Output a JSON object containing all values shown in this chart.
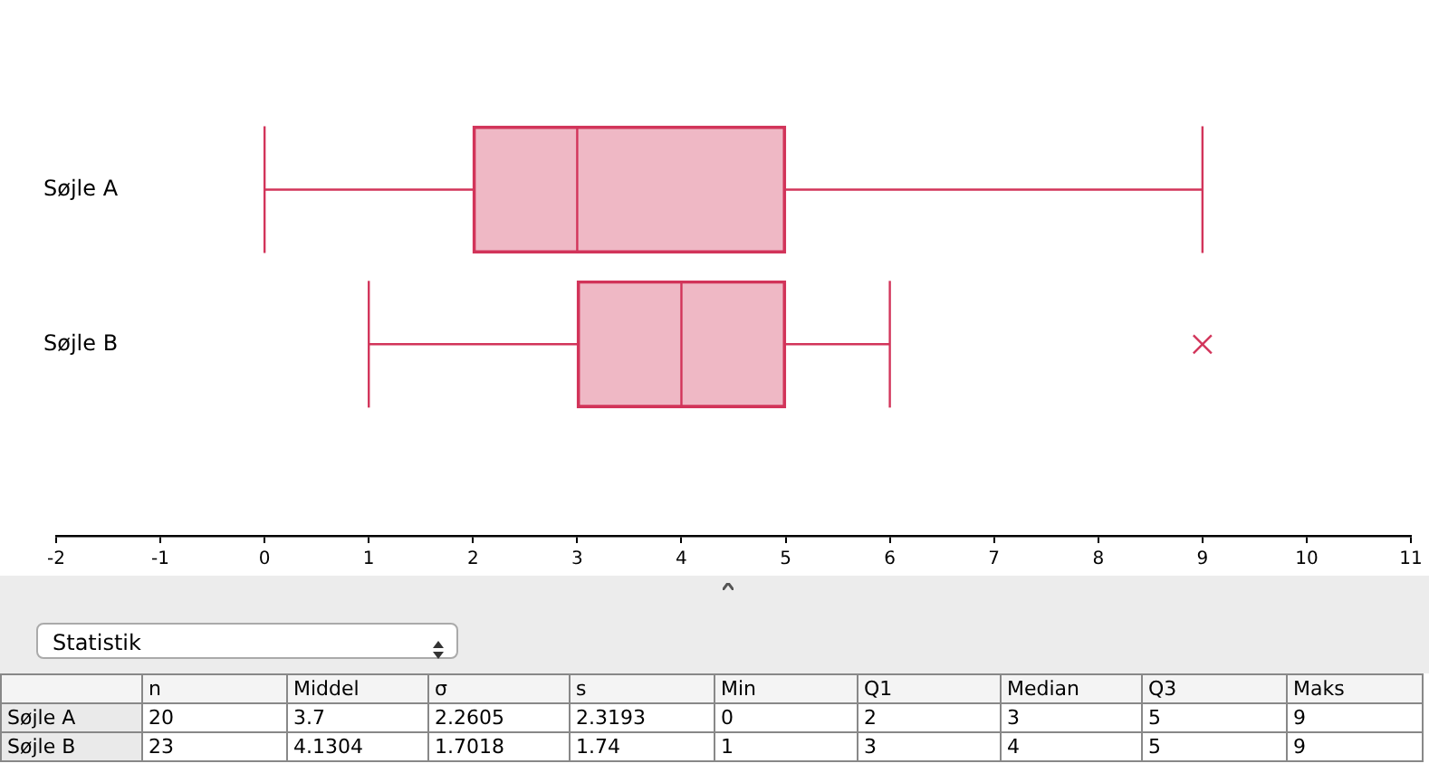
{
  "chart_data": {
    "type": "box",
    "orientation": "horizontal",
    "categories": [
      "Søjle A",
      "Søjle B"
    ],
    "color": "#d2345a",
    "boxes": [
      {
        "low": 0,
        "q1": 2,
        "median": 3,
        "q3": 5,
        "high": 9
      },
      {
        "low": 1,
        "q1": 3,
        "median": 4,
        "q3": 5,
        "high": 6,
        "outliers": [
          9
        ]
      }
    ],
    "xlim": [
      -2,
      11
    ],
    "xticks": [
      -2,
      -1,
      0,
      1,
      2,
      3,
      4,
      5,
      6,
      7,
      8,
      9,
      10,
      11
    ],
    "grid": false,
    "annotations": [
      "Statistik",
      "\tn\tMiddel\tσ\ts\tMin\tQ1\tMedian\tQ3\tMaks",
      "Søjle A\t20\t3.7\t2.2605\t2.3193\t0\t2\t3\t5\t9",
      "Søjle B\t23\t4.1304\t1.7018\t1.74\t1\t3\t4\t5\t9"
    ]
  }
}
